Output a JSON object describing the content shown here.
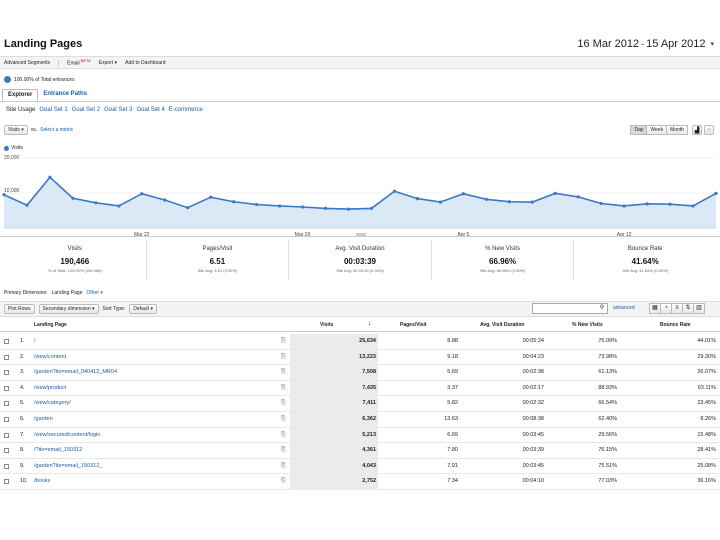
{
  "report": {
    "title": "Landing Pages",
    "date_start": "16 Mar 2012",
    "date_sep": "-",
    "date_end": "15 Apr 2012"
  },
  "toolbar": {
    "advanced_segments": "Advanced Segments",
    "email": "Email",
    "beta": "BETA",
    "export": "Export",
    "add_dashboard": "Add to Dashboard"
  },
  "segment": {
    "label": "100.00% of Total entrances"
  },
  "tabs": [
    "Explorer",
    "Entrance Paths"
  ],
  "subtabs": [
    "Site Usage",
    "Goal Set 1",
    "Goal Set 2",
    "Goal Set 3",
    "Goal Set 4",
    "E-commerce"
  ],
  "metric_picker": {
    "metric": "Visits",
    "vs": "vs.",
    "select": "Select a metric"
  },
  "grain": [
    "Day",
    "Week",
    "Month"
  ],
  "colors": {
    "accent": "#3a78c4",
    "link": "#1a5ea8",
    "area": "#dbe9f6"
  },
  "chart_data": {
    "type": "area",
    "series": [
      {
        "name": "Visits",
        "values": [
          9500,
          6500,
          14500,
          8500,
          7200,
          6300,
          9800,
          8000,
          5800,
          8800,
          7500,
          6700,
          6300,
          6000,
          5600,
          5400,
          5600,
          10500,
          8400,
          7400,
          9800,
          8200,
          7500,
          7400,
          9900,
          8900,
          7000,
          6300,
          6900,
          6800,
          6300,
          9900
        ]
      }
    ],
    "x_ticks": [
      "Mar 22",
      "Mar 29",
      "Apr 5",
      "Apr 12"
    ],
    "y_ticks": [
      "20,000",
      "10,000"
    ],
    "ylim": [
      0,
      20000
    ],
    "grid": true
  },
  "scorecards": [
    {
      "label": "Visits",
      "value": "190,466",
      "sub": "% of Total: 100.00% (190,466)"
    },
    {
      "label": "Pages/Visit",
      "value": "6.51",
      "sub": "Site Avg: 6.51 (0.00%)"
    },
    {
      "label": "Avg. Visit Duration",
      "value": "00:03:39",
      "sub": "Site Avg: 00:03:39 (0.00%)"
    },
    {
      "label": "% New Visits",
      "value": "66.96%",
      "sub": "Site Avg: 66.96% (0.00%)"
    },
    {
      "label": "Bounce Rate",
      "value": "41.64%",
      "sub": "Site Avg: 41.64% (0.00%)"
    }
  ],
  "primary_dimension": {
    "label": "Primary Dimension:",
    "value": "Landing Page",
    "other": "Other"
  },
  "table_toolbar": {
    "plot_rows": "Plot Rows",
    "secondary": "Secondary dimension",
    "sort_label": "Sort Type:",
    "sort_value": "Default",
    "advanced": "advanced"
  },
  "table": {
    "headers": {
      "page": "Landing Page",
      "visits": "Visits",
      "ppv": "Pages/Visit",
      "dur": "Avg. Visit Duration",
      "nv": "% New Visits",
      "br": "Bounce Rate"
    },
    "rows": [
      {
        "n": "1.",
        "page": "/",
        "visits": "25,634",
        "ppv": "8.88",
        "dur": "00:05:24",
        "nv": "76.09%",
        "br": "44.01%"
      },
      {
        "n": "2.",
        "page": "/view/content",
        "visits": "13,223",
        "ppv": "9.18",
        "dur": "00:04:23",
        "nv": "73.98%",
        "br": "29.30%"
      },
      {
        "n": "3.",
        "page": "/garden?ito=email_040412_MR04",
        "visits": "7,508",
        "ppv": "5.69",
        "dur": "00:02:38",
        "nv": "61.13%",
        "br": "26.07%"
      },
      {
        "n": "4.",
        "page": "/view/product",
        "visits": "7,435",
        "ppv": "3.37",
        "dur": "00:02:17",
        "nv": "88.93%",
        "br": "63.11%"
      },
      {
        "n": "5.",
        "page": "/view/category/",
        "visits": "7,411",
        "ppv": "5.82",
        "dur": "00:02:32",
        "nv": "66.54%",
        "br": "23.45%"
      },
      {
        "n": "6.",
        "page": "/garden",
        "visits": "6,362",
        "ppv": "13.63",
        "dur": "00:08:38",
        "nv": "62.40%",
        "br": "8.26%"
      },
      {
        "n": "7.",
        "page": "/view/secured/content/login",
        "visits": "5,213",
        "ppv": "6.69",
        "dur": "00:03:45",
        "nv": "29.56%",
        "br": "15.48%"
      },
      {
        "n": "8.",
        "page": "/?ito=email_150312",
        "visits": "4,361",
        "ppv": "7.80",
        "dur": "00:03:39",
        "nv": "76.15%",
        "br": "28.41%"
      },
      {
        "n": "9.",
        "page": "/garden?ito=email_150312_",
        "visits": "4,043",
        "ppv": "7.91",
        "dur": "00:03:45",
        "nv": "75.51%",
        "br": "25.08%"
      },
      {
        "n": "10.",
        "page": "/books",
        "visits": "2,752",
        "ppv": "7.34",
        "dur": "00:04:10",
        "nv": "77.03%",
        "br": "36.16%"
      }
    ]
  }
}
